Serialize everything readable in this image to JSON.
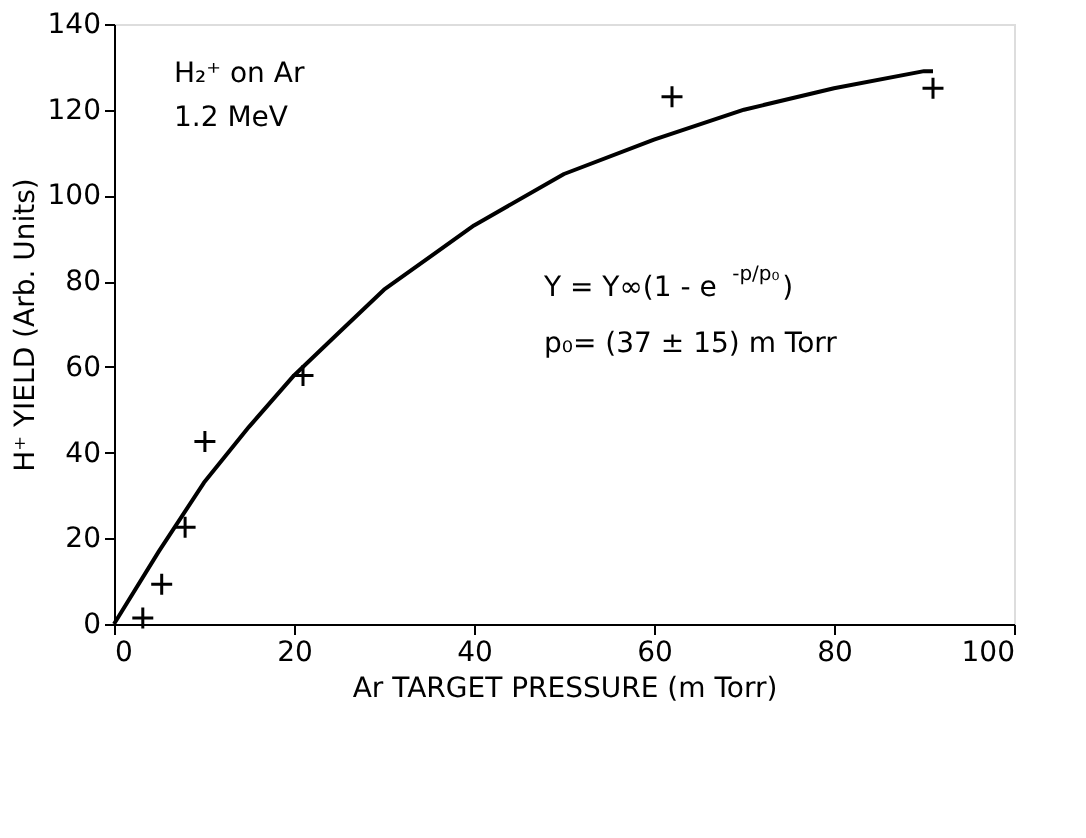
{
  "chart_data": {
    "type": "scatter",
    "xlabel": "Ar TARGET PRESSURE  (m Torr)",
    "ylabel": "H⁺ YIELD (Arb. Units)",
    "xlim": [
      0,
      100
    ],
    "xticks": [
      0,
      20,
      40,
      60,
      80,
      100
    ],
    "ylim": [
      0,
      140
    ],
    "yticks": [
      0,
      20,
      40,
      60,
      80,
      100,
      120,
      140
    ],
    "grid": false,
    "series": [
      {
        "marker": "cross",
        "color": "#000000",
        "x": [
          3.2,
          5.3,
          7.9,
          10.1,
          21,
          62,
          91
        ],
        "values": [
          1.4,
          9.3,
          22.6,
          42.6,
          58,
          123,
          125
        ]
      },
      {
        "type": "line",
        "marker": "none",
        "line_style": "solid",
        "color": "#000000",
        "x": [
          0,
          5,
          10,
          15,
          20,
          25,
          30,
          40,
          50,
          60,
          70,
          80,
          90,
          91
        ],
        "values": [
          0,
          17,
          33,
          46,
          58,
          68,
          78,
          93,
          105,
          113,
          120,
          125,
          129,
          129
        ]
      }
    ],
    "annotations": [
      "H₂⁺ on Ar",
      "1.2 MeV",
      "Y = Y∞(1 - e$^{-p/p₀}$)",
      "p₀= (37 ± 15) m Torr"
    ]
  }
}
